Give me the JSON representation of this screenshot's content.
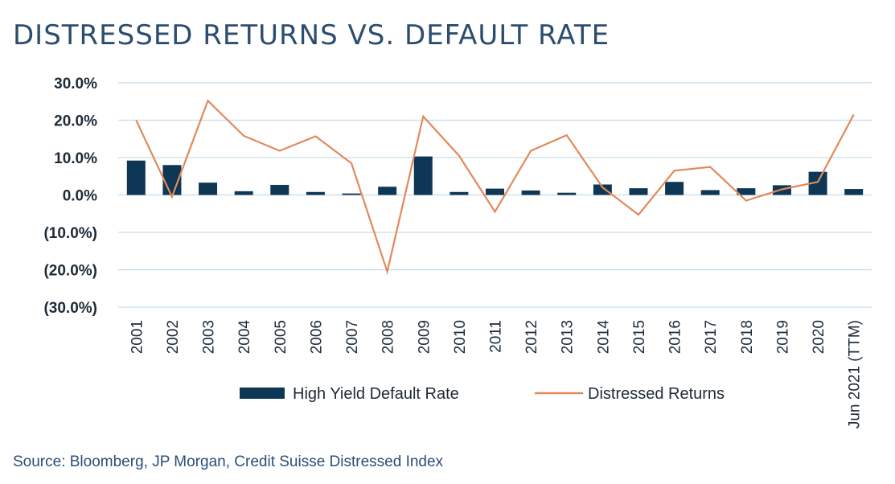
{
  "title": "DISTRESSED RETURNS VS. DEFAULT RATE",
  "source": "Source: Bloomberg, JP Morgan, Credit Suisse Distressed Index",
  "colors": {
    "bar": "#0e3655",
    "line": "#e08a5a",
    "grid": "#c7dcea",
    "title": "#2c4d6e"
  },
  "chart_data": {
    "type": "bar",
    "categories": [
      "2001",
      "2002",
      "2003",
      "2004",
      "2005",
      "2006",
      "2007",
      "2008",
      "2009",
      "2010",
      "2011",
      "2012",
      "2013",
      "2014",
      "2015",
      "2016",
      "2017",
      "2018",
      "2019",
      "2020",
      "Jun 2021 (TTM)"
    ],
    "series": [
      {
        "name": "High Yield Default Rate",
        "type": "bar",
        "values": [
          9.2,
          8.0,
          3.3,
          1.0,
          2.7,
          0.8,
          0.4,
          2.2,
          10.3,
          0.8,
          1.7,
          1.2,
          0.6,
          2.8,
          1.8,
          3.5,
          1.3,
          1.8,
          2.6,
          6.2,
          1.6
        ]
      },
      {
        "name": "Distressed Returns",
        "type": "line",
        "values": [
          20.0,
          -0.5,
          25.2,
          15.8,
          11.8,
          15.7,
          8.5,
          -20.5,
          21.0,
          10.5,
          -4.5,
          11.8,
          16.0,
          2.0,
          -5.3,
          6.5,
          7.5,
          -1.5,
          1.5,
          3.5,
          21.5
        ]
      }
    ],
    "yticks": [
      "30.0%",
      "20.0%",
      "10.0%",
      "0.0%",
      "(10.0%)",
      "(20.0%)",
      "(30.0%)"
    ],
    "ytick_values": [
      30,
      20,
      10,
      0,
      -10,
      -20,
      -30
    ],
    "ylim": [
      -30,
      30
    ],
    "grid": true,
    "legend_position": "bottom"
  }
}
